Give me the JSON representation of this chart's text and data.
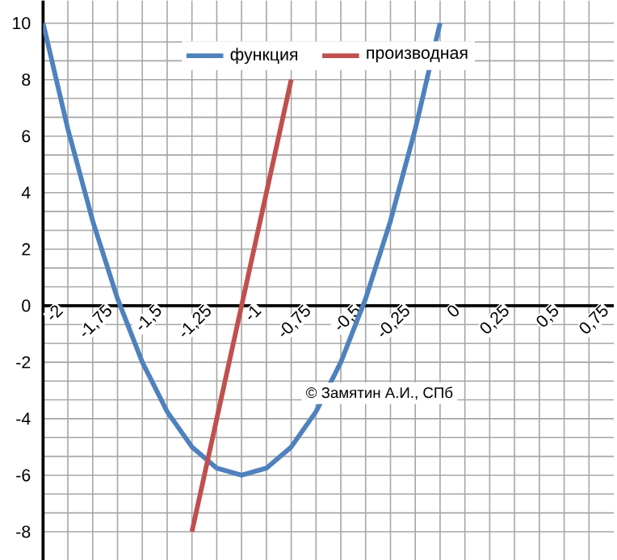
{
  "chart_data": {
    "type": "line",
    "x": [
      -2,
      -1.875,
      -1.75,
      -1.625,
      -1.5,
      -1.375,
      -1.25,
      -1.125,
      -1,
      -0.875,
      -0.75,
      -0.625,
      -0.5,
      -0.375,
      -0.25,
      -0.125,
      0
    ],
    "series": [
      {
        "name": "функция",
        "color": "#4f81bd",
        "values": [
          10,
          6.25,
          3,
          0.25,
          -2,
          -3.75,
          -5,
          -5.75,
          -6,
          -5.75,
          -5,
          -3.75,
          -2,
          0.25,
          3,
          6.25,
          10
        ]
      },
      {
        "name": "производная",
        "color": "#c0504d",
        "x": [
          -1.25,
          -1.125,
          -1,
          -0.875,
          -0.75
        ],
        "values": [
          -8,
          -4,
          0,
          4,
          8
        ]
      }
    ],
    "xlim": [
      -2,
      0.875
    ],
    "ylim": [
      -9,
      10.8
    ],
    "xticks": [
      -2,
      {
        "value": -1.75,
        "label": "-1,75"
      },
      {
        "value": -1.5,
        "label": "-1,5"
      },
      {
        "value": -1.25,
        "label": "-1,25"
      },
      -1,
      {
        "value": -0.75,
        "label": "-0,75"
      },
      {
        "value": -0.5,
        "label": "-0,5"
      },
      {
        "value": -0.25,
        "label": "-0,25"
      },
      0,
      {
        "value": 0.25,
        "label": "0,25"
      },
      {
        "value": 0.5,
        "label": "0,5"
      },
      {
        "value": 0.75,
        "label": "0,75"
      }
    ],
    "yticks": [
      -8,
      -6,
      -4,
      -2,
      0,
      2,
      4,
      6,
      8,
      10
    ],
    "grid": true,
    "legend": "top",
    "marker": "none",
    "line_style": "solid",
    "annotations": [
      "© Замятин А.И., СПб"
    ]
  }
}
